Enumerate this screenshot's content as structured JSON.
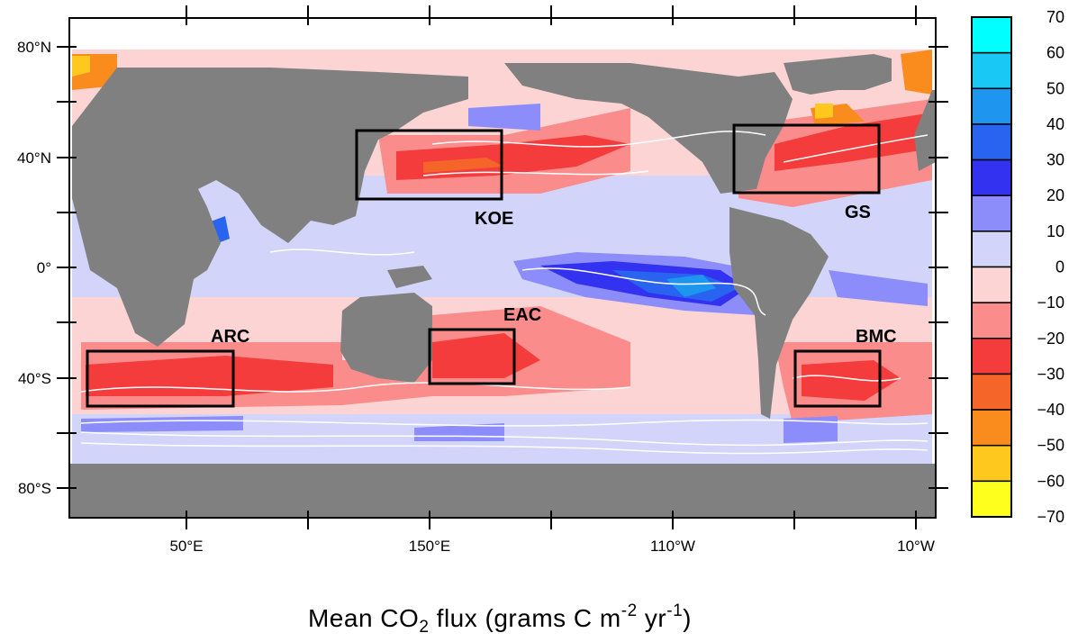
{
  "caption": {
    "prefix": "Mean CO",
    "sub": "2",
    "middle": " flux (grams C m",
    "sup1": "-2",
    "mid2": " yr",
    "sup2": "-1",
    "suffix": ")"
  },
  "lat_labels": [
    "80°N",
    "40°N",
    "0°",
    "40°S",
    "80°S"
  ],
  "lon_labels": [
    "50°E",
    "150°E",
    "110°W",
    "10°W"
  ],
  "regions": [
    {
      "name": "KOE"
    },
    {
      "name": "GS"
    },
    {
      "name": "EAC"
    },
    {
      "name": "ARC"
    },
    {
      "name": "BMC"
    }
  ],
  "colorbar": {
    "labels": [
      "70",
      "60",
      "50",
      "40",
      "30",
      "20",
      "10",
      "0",
      "−10",
      "−20",
      "−30",
      "−40",
      "−50",
      "−60",
      "−70"
    ],
    "colors": [
      "#00ffff",
      "#19c8f5",
      "#1e96f0",
      "#2864f0",
      "#3232f0",
      "#8c8cfa",
      "#d2d4fa",
      "#fcd4d4",
      "#fa8c8c",
      "#f53c3c",
      "#f56428",
      "#fa8c1e",
      "#ffc81e",
      "#ffff1e"
    ]
  },
  "colors": {
    "land": "#808080",
    "ice": "#ffffff",
    "frame": "#000000",
    "contour": "#ffffff"
  }
}
